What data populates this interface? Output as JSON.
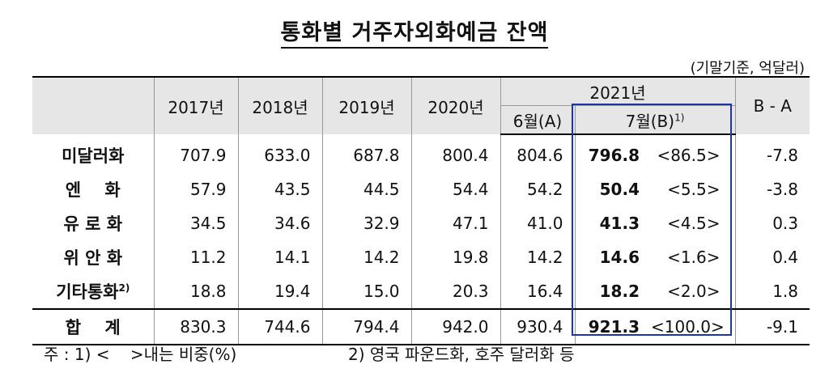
{
  "title": "통화별 거주자외화예금 잔액",
  "unit": "(기말기준, 억달러)",
  "header": {
    "years": [
      "2017년",
      "2018년",
      "2019년",
      "2020년"
    ],
    "group": "2021년",
    "june": "6월(A)",
    "july": "7월(B)",
    "july_sup": "1)",
    "diff": "B - A"
  },
  "rows": [
    {
      "label": "미달러화",
      "sup": "",
      "v2017": "707.9",
      "v2018": "633.0",
      "v2019": "687.8",
      "v2020": "800.4",
      "jun": "804.6",
      "jul": "796.8",
      "share": "<86.5>",
      "diff": "-7.8"
    },
    {
      "label": "엔    화",
      "sup": "",
      "v2017": "57.9",
      "v2018": "43.5",
      "v2019": "44.5",
      "v2020": "54.4",
      "jun": "54.2",
      "jul": "50.4",
      "share": "<5.5>",
      "diff": "-3.8"
    },
    {
      "label": "유 로 화",
      "sup": "",
      "v2017": "34.5",
      "v2018": "34.6",
      "v2019": "32.9",
      "v2020": "47.1",
      "jun": "41.0",
      "jul": "41.3",
      "share": "<4.5>",
      "diff": "0.3"
    },
    {
      "label": "위 안 화",
      "sup": "",
      "v2017": "11.2",
      "v2018": "14.1",
      "v2019": "14.2",
      "v2020": "19.8",
      "jun": "14.2",
      "jul": "14.6",
      "share": "<1.6>",
      "diff": "0.4"
    },
    {
      "label": "기타통화",
      "sup": "2)",
      "v2017": "18.8",
      "v2018": "19.4",
      "v2019": "15.0",
      "v2020": "20.3",
      "jun": "16.4",
      "jul": "18.2",
      "share": "<2.0>",
      "diff": "1.8"
    }
  ],
  "total": {
    "label": "합    계",
    "v2017": "830.3",
    "v2018": "744.6",
    "v2019": "794.4",
    "v2020": "942.0",
    "jun": "930.4",
    "jul": "921.3",
    "share": "<100.0>",
    "diff": "-9.1"
  },
  "footnotes": {
    "note1": "주 : 1) <    >내는 비중(%)",
    "note2": "2) 영국 파운드화, 호주 달러화 등"
  },
  "colors": {
    "highlight_box": "#2233aa",
    "header_bg": "#e6e6e6"
  }
}
